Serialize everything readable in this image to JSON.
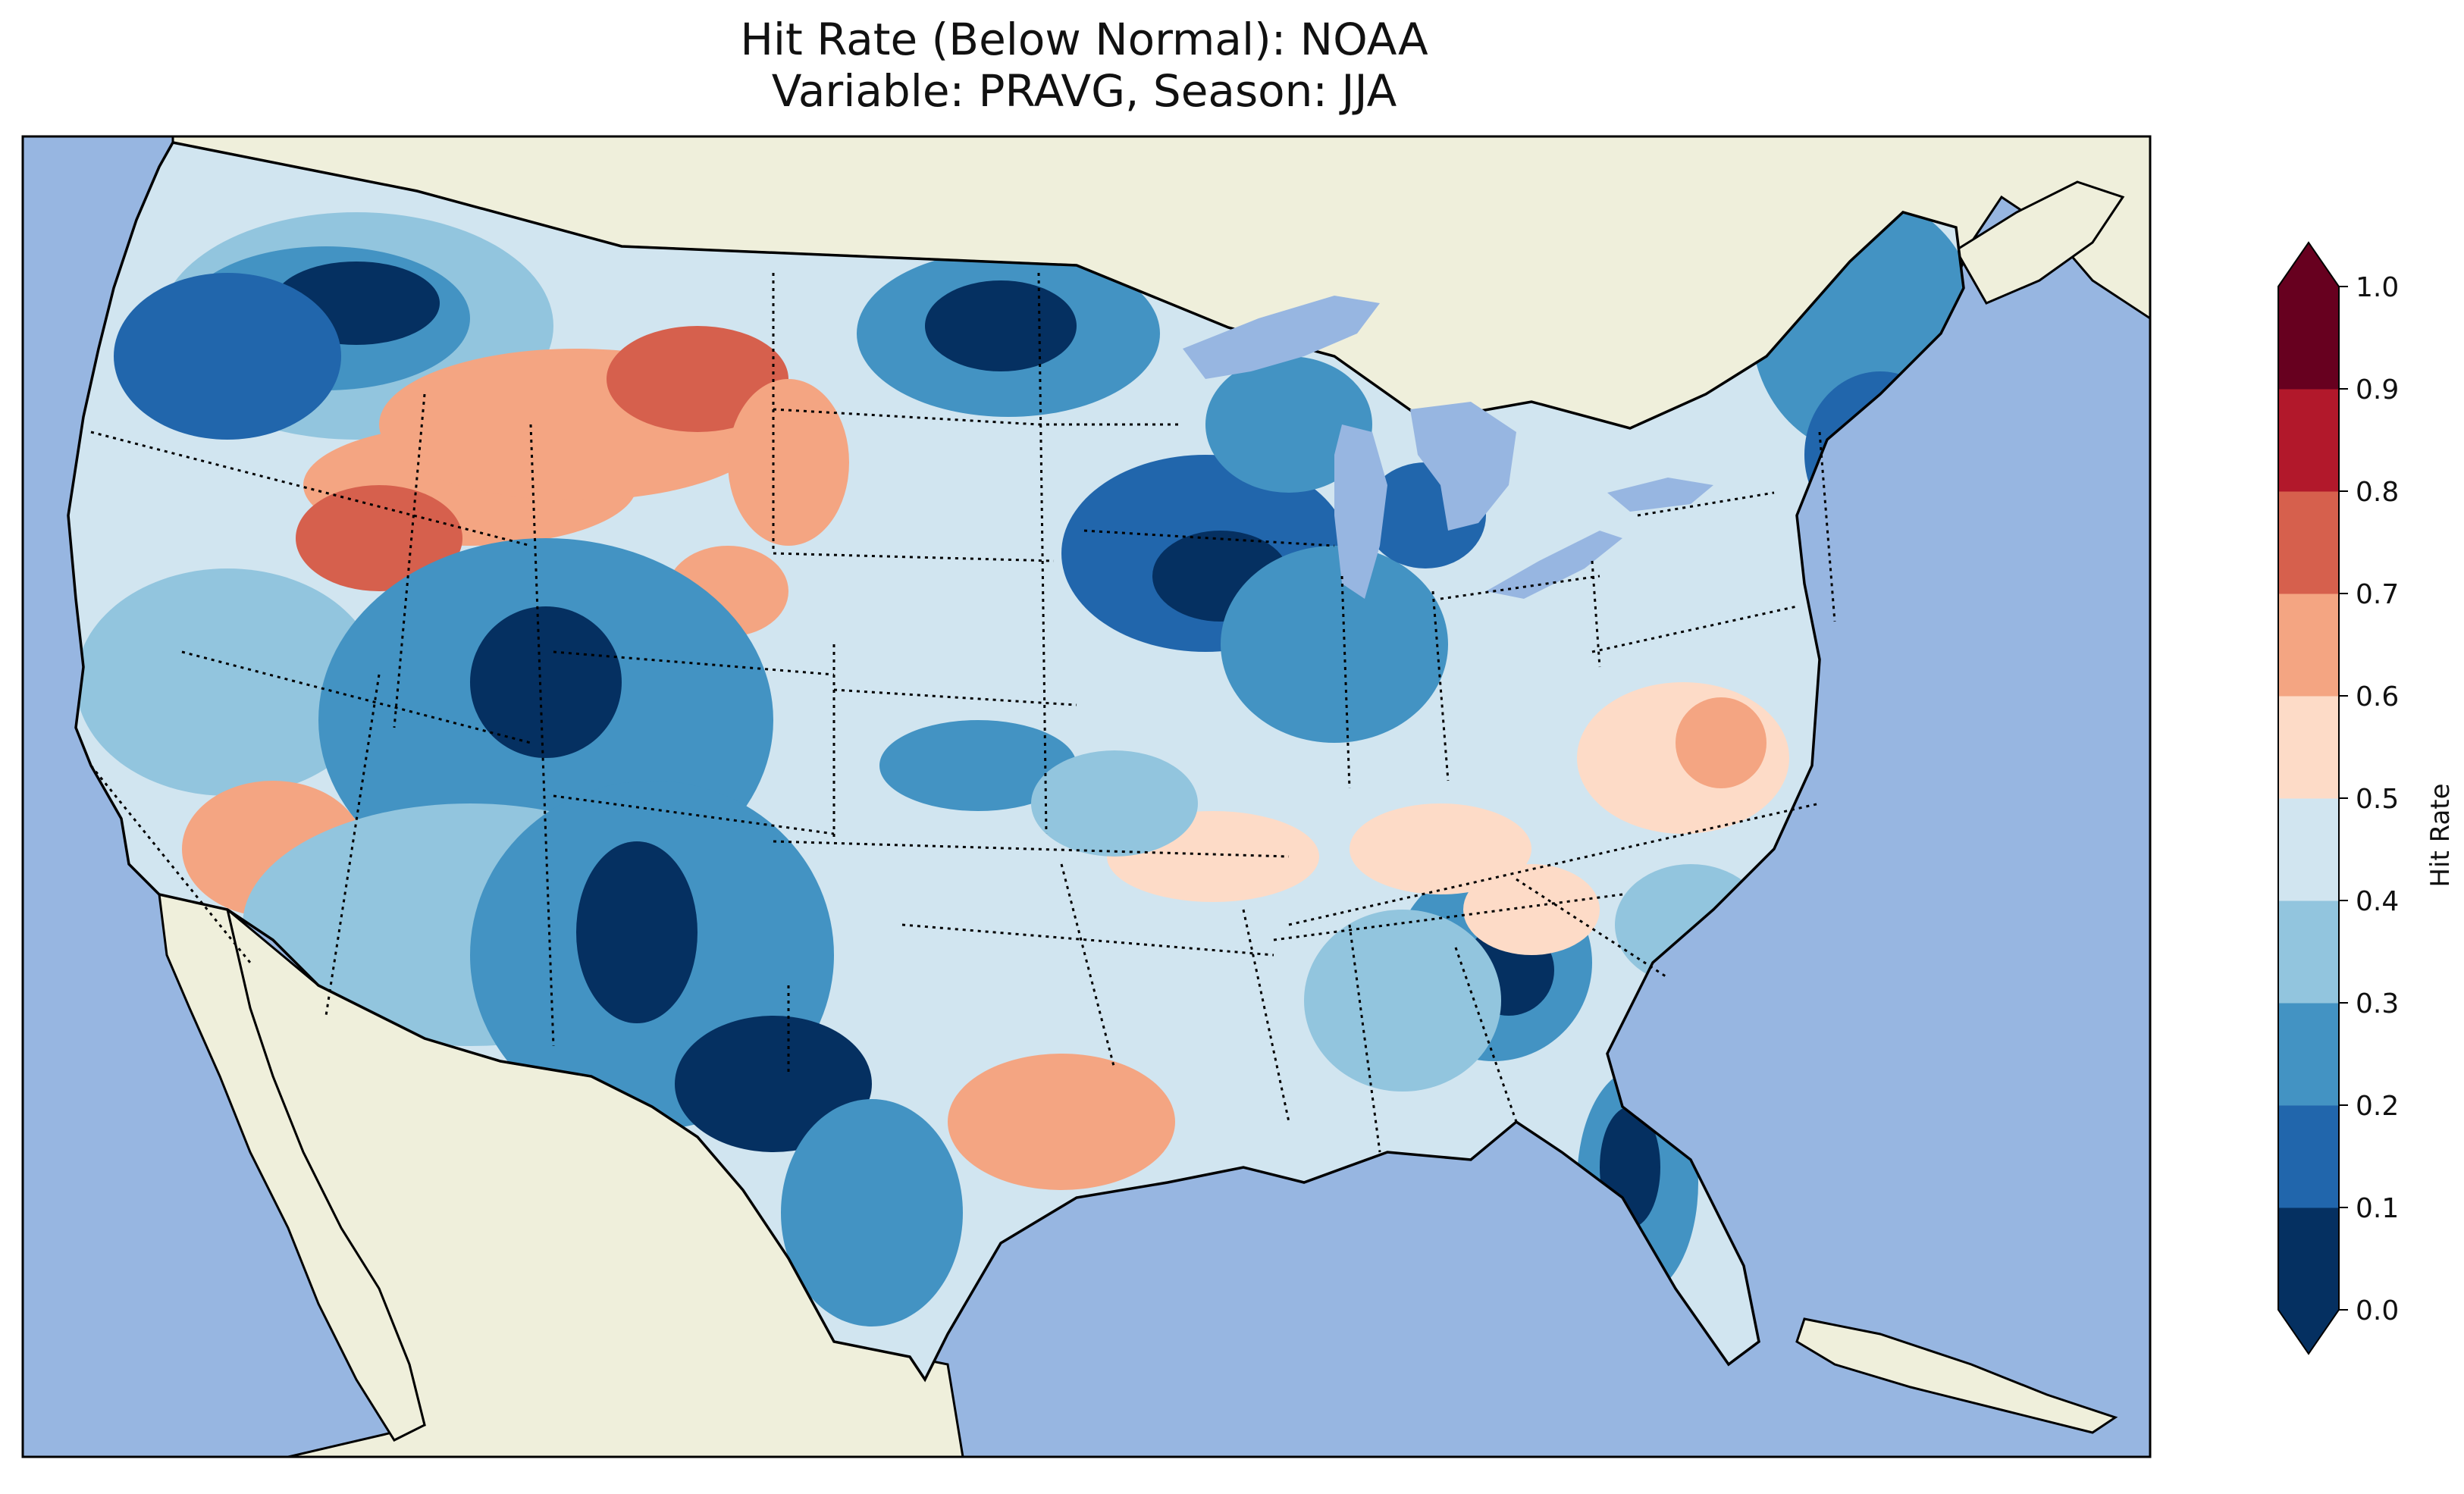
{
  "title": {
    "line1": "Hit Rate (Below Normal): NOAA",
    "line2": "Variable: PRAVG, Season: JJA"
  },
  "colors": {
    "ocean": "#97b6e1",
    "land": "#efefdb",
    "coast": "#000000",
    "lake": "#97b6e1"
  },
  "colorbar": {
    "label": "Hit Rate",
    "ticks": [
      "0.0",
      "0.1",
      "0.2",
      "0.3",
      "0.4",
      "0.5",
      "0.6",
      "0.7",
      "0.8",
      "0.9",
      "1.0"
    ],
    "bins": [
      "#053061",
      "#2166ac",
      "#4393c3",
      "#92c5de",
      "#d1e5f0",
      "#fddbc7",
      "#f4a582",
      "#d6604d",
      "#b2182b",
      "#67001f"
    ],
    "under_color": "#053061",
    "over_color": "#67001f"
  }
}
